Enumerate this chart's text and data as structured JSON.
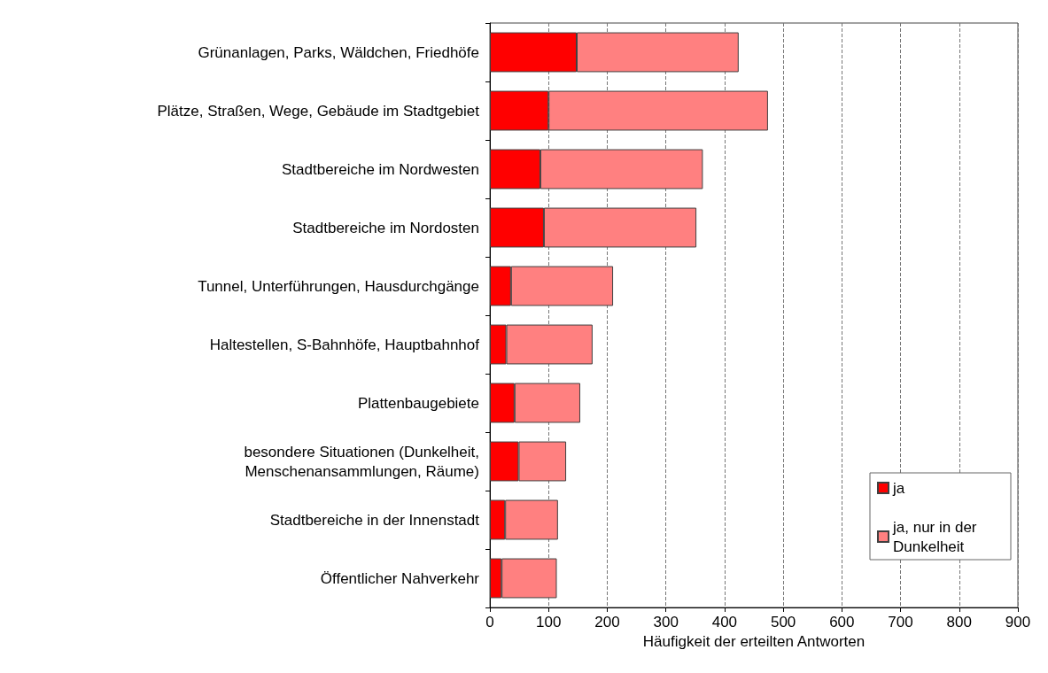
{
  "chart_data": {
    "type": "bar",
    "orientation": "horizontal",
    "stacked": true,
    "categories": [
      "Grünanlagen, Parks, Wäldchen, Friedhöfe",
      "Plätze, Straßen, Wege, Gebäude im Stadtgebiet",
      "Stadtbereiche im Nordwesten",
      "Stadtbereiche im Nordosten",
      "Tunnel, Unterführungen, Hausdurchgänge",
      "Haltestellen, S-Bahnhöfe, Hauptbahnhof",
      "Plattenbaugebiete",
      "besondere Situationen (Dunkelheit,\nMenschenansammlungen, Räume)",
      "Stadtbereiche in der Innenstadt",
      "Öffentlicher Nahverkehr"
    ],
    "series": [
      {
        "name": "ja",
        "color": "#ff0000",
        "values": [
          148,
          100,
          86,
          92,
          36,
          28,
          42,
          49,
          26,
          20
        ]
      },
      {
        "name": "ja, nur in der Dunkelheit",
        "color": "#ff8080",
        "values": [
          276,
          374,
          277,
          260,
          174,
          147,
          112,
          81,
          90,
          94
        ]
      }
    ],
    "xlabel": "Häufigkeit der erteilten Antworten",
    "xlim": [
      0,
      900
    ],
    "xticks": [
      0,
      100,
      200,
      300,
      400,
      500,
      600,
      700,
      800,
      900
    ],
    "grid": "x",
    "legend": "bottom right"
  }
}
